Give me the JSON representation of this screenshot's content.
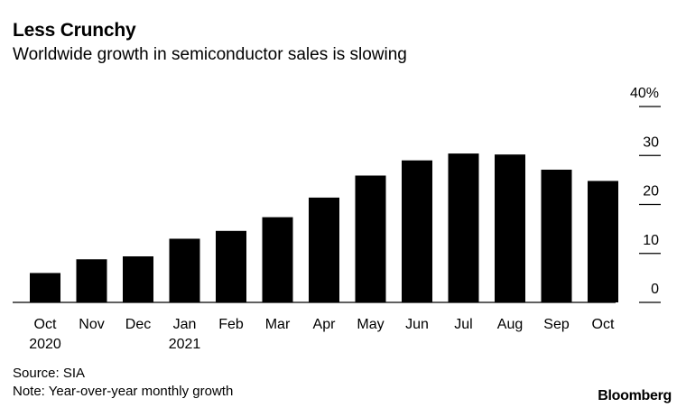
{
  "header": {
    "title": "Less Crunchy",
    "subtitle": "Worldwide growth in semiconductor sales is slowing"
  },
  "footer": {
    "source": "Source: SIA",
    "note": "Note: Year-over-year monthly growth",
    "brand": "Bloomberg"
  },
  "colors": {
    "bar": "#000000",
    "axis": "#000000",
    "background": "#ffffff"
  },
  "chart_data": {
    "type": "bar",
    "title": "Less Crunchy",
    "subtitle": "Worldwide growth in semiconductor sales is slowing",
    "categories": [
      [
        "Oct",
        "2020"
      ],
      [
        "Nov",
        ""
      ],
      [
        "Dec",
        ""
      ],
      [
        "Jan",
        "2021"
      ],
      [
        "Feb",
        ""
      ],
      [
        "Mar",
        ""
      ],
      [
        "Apr",
        ""
      ],
      [
        "May",
        ""
      ],
      [
        "Jun",
        ""
      ],
      [
        "Jul",
        ""
      ],
      [
        "Aug",
        ""
      ],
      [
        "Sep",
        ""
      ],
      [
        "Oct",
        ""
      ]
    ],
    "values": [
      6.0,
      8.8,
      9.4,
      13.0,
      14.6,
      17.4,
      21.4,
      25.9,
      29.0,
      30.4,
      30.2,
      27.1,
      24.8
    ],
    "ylim": [
      0,
      40
    ],
    "yticks": [
      0,
      10,
      20,
      30,
      40
    ],
    "ytick_labels": [
      "0",
      "10",
      "20",
      "30",
      "40%"
    ],
    "y_axis_position": "right",
    "grid": false,
    "legend": "none"
  }
}
